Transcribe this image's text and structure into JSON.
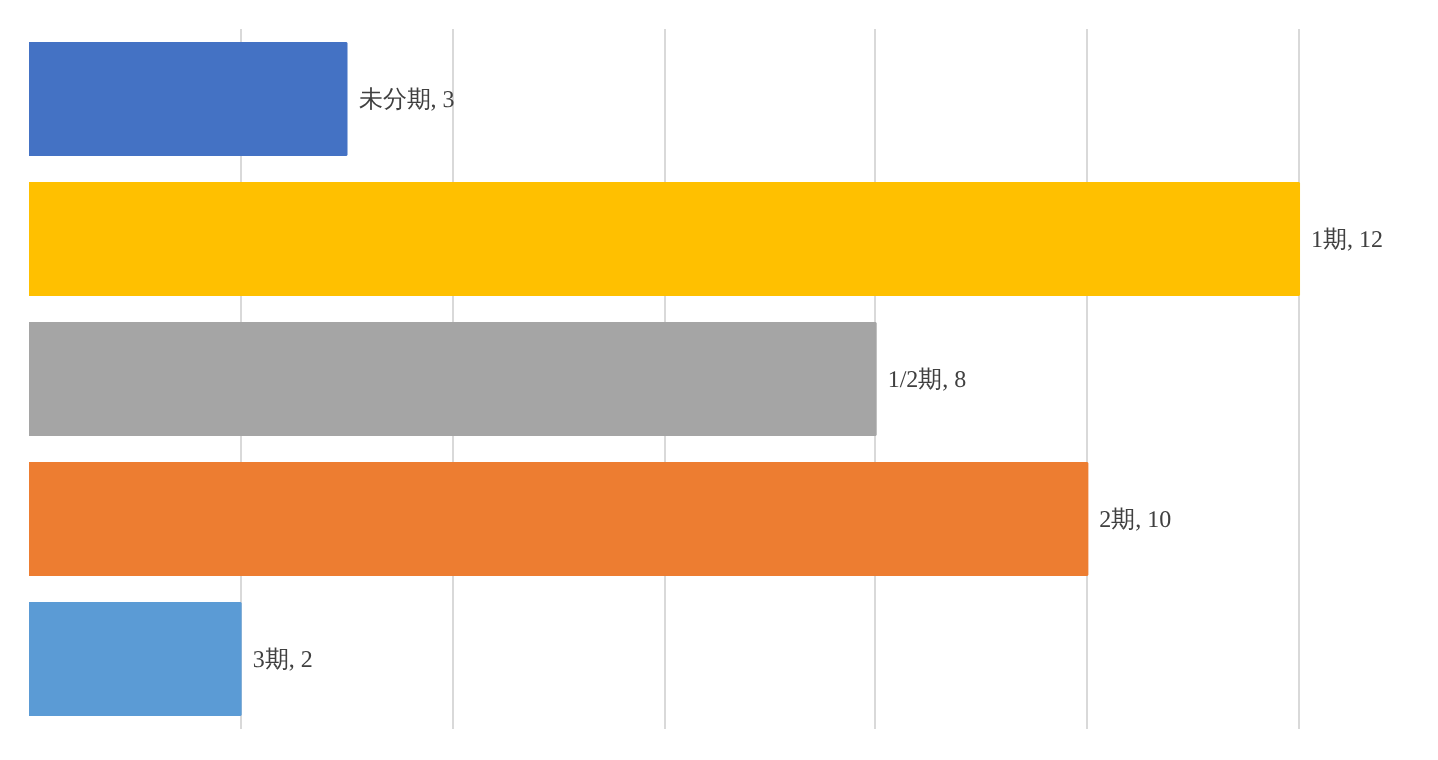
{
  "chart_data": {
    "type": "bar",
    "orientation": "horizontal",
    "categories": [
      null,
      null,
      null,
      null,
      null
    ],
    "values": [
      3,
      12,
      8,
      10,
      2
    ],
    "colors": [
      "#4472c4",
      "#ffc000",
      "#a5a5a5",
      "#ed7d31",
      "#5b9bd5"
    ],
    "value_labels": [
      "未分期, 3",
      "1期, 12",
      "1/2期, 8",
      "2期, 10",
      "3期, 2"
    ],
    "grid": "x",
    "tick_labels": false
  }
}
